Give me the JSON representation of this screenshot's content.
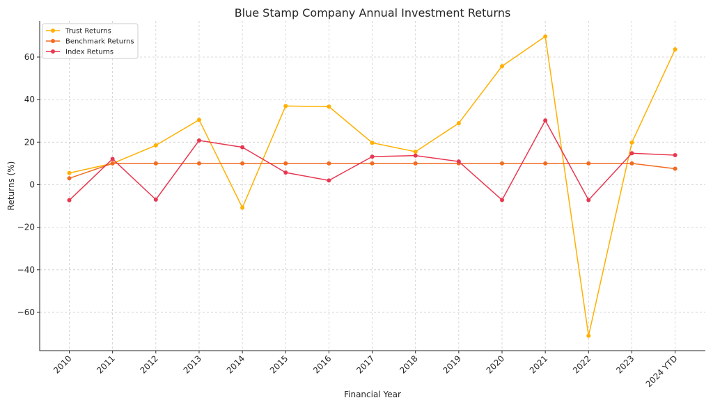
{
  "chart_data": {
    "type": "line",
    "title": "Blue Stamp Company Annual Investment Returns",
    "xlabel": "Financial Year",
    "ylabel": "Returns (%)",
    "categories": [
      "2010",
      "2011",
      "2012",
      "2013",
      "2014",
      "2015",
      "2016",
      "2017",
      "2018",
      "2019",
      "2020",
      "2021",
      "2022",
      "2023",
      "2024 YTD"
    ],
    "ylim": [
      -78,
      77
    ],
    "yticks": [
      -60,
      -40,
      -20,
      0,
      20,
      40,
      60
    ],
    "ytick_labels": [
      "−60",
      "−40",
      "−20",
      "0",
      "20",
      "40",
      "60"
    ],
    "grid": true,
    "legend_position": "top-left",
    "series": [
      {
        "name": "Trust Returns",
        "color": "#FFB000",
        "values": [
          5.5,
          10.0,
          18.5,
          30.5,
          -10.8,
          37.0,
          36.7,
          19.7,
          15.5,
          28.9,
          55.7,
          69.7,
          -71.0,
          19.8,
          63.6
        ]
      },
      {
        "name": "Benchmark Returns",
        "color": "#F26B21",
        "values": [
          3.0,
          10.0,
          10.0,
          10.0,
          10.0,
          10.0,
          10.0,
          10.0,
          10.0,
          10.0,
          10.0,
          10.0,
          10.0,
          10.0,
          7.5
        ]
      },
      {
        "name": "Index Returns",
        "color": "#E8374F",
        "values": [
          -7.3,
          12.1,
          -7.0,
          20.8,
          17.6,
          5.7,
          2.0,
          13.2,
          13.7,
          10.9,
          -7.2,
          30.2,
          -7.2,
          14.8,
          13.9
        ]
      }
    ]
  }
}
